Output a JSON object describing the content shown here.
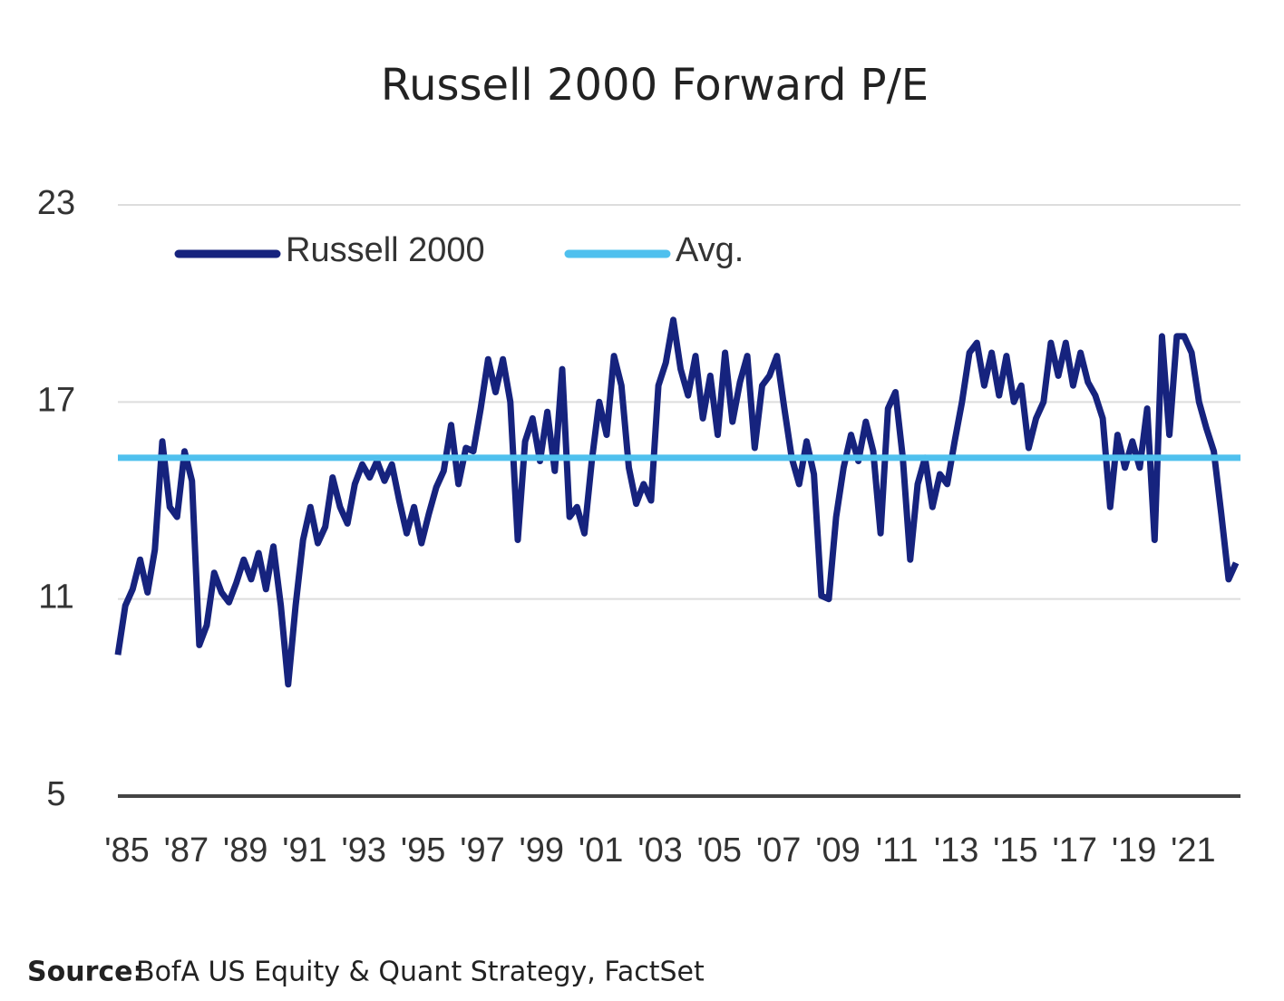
{
  "chart_data": {
    "type": "line",
    "title": "Russell 2000 Forward P/E",
    "source_label": "Source:",
    "source": "BofA US Equity & Quant Strategy, FactSet",
    "x": [
      1985,
      1985.25,
      1985.5,
      1985.75,
      1986,
      1986.25,
      1986.5,
      1986.75,
      1987,
      1987.25,
      1987.5,
      1987.75,
      1988,
      1988.25,
      1988.5,
      1988.75,
      1989,
      1989.25,
      1989.5,
      1989.75,
      1990,
      1990.25,
      1990.5,
      1990.75,
      1991,
      1991.25,
      1991.5,
      1991.75,
      1992,
      1992.25,
      1992.5,
      1992.75,
      1993,
      1993.25,
      1993.5,
      1993.75,
      1994,
      1994.25,
      1994.5,
      1994.75,
      1995,
      1995.25,
      1995.5,
      1995.75,
      1996,
      1996.25,
      1996.5,
      1996.75,
      1997,
      1997.25,
      1997.5,
      1997.75,
      1998,
      1998.25,
      1998.5,
      1998.75,
      1999,
      1999.25,
      1999.5,
      1999.75,
      2000,
      2000.25,
      2000.5,
      2000.75,
      2001,
      2001.25,
      2001.5,
      2001.75,
      2002,
      2002.25,
      2002.5,
      2002.75,
      2003,
      2003.25,
      2003.5,
      2003.75,
      2004,
      2004.25,
      2004.5,
      2004.75,
      2005,
      2005.25,
      2005.5,
      2005.75,
      2006,
      2006.25,
      2006.5,
      2006.75,
      2007,
      2007.25,
      2007.5,
      2007.75,
      2008,
      2008.25,
      2008.5,
      2008.75,
      2009,
      2009.25,
      2009.5,
      2009.75,
      2010,
      2010.25,
      2010.5,
      2010.75,
      2011,
      2011.25,
      2011.5,
      2011.75,
      2012,
      2012.25,
      2012.5,
      2012.75,
      2013,
      2013.25,
      2013.5,
      2013.75,
      2014,
      2014.25,
      2014.5,
      2014.75,
      2015,
      2015.25,
      2015.5,
      2015.75,
      2016,
      2016.25,
      2016.5,
      2016.75,
      2017,
      2017.25,
      2017.5,
      2017.75,
      2018,
      2018.25,
      2018.5,
      2018.75,
      2019,
      2019.25,
      2019.5,
      2019.75,
      2020,
      2020.25,
      2020.5,
      2020.75,
      2021,
      2021.25,
      2021.5,
      2021.75,
      2022,
      2022.25,
      2022.5,
      2022.75
    ],
    "series": [
      {
        "name": "Russell 2000",
        "color": "#16237e",
        "values": [
          9.3,
          10.8,
          11.3,
          12.2,
          11.2,
          12.5,
          15.8,
          13.8,
          13.5,
          15.5,
          14.6,
          9.6,
          10.2,
          11.8,
          11.2,
          10.9,
          11.5,
          12.2,
          11.6,
          12.4,
          11.3,
          12.6,
          10.8,
          8.4,
          10.8,
          12.8,
          13.8,
          12.7,
          13.2,
          14.7,
          13.8,
          13.3,
          14.5,
          15.1,
          14.7,
          15.2,
          14.6,
          15.1,
          14.0,
          13.0,
          13.8,
          12.7,
          13.6,
          14.4,
          14.9,
          16.3,
          14.5,
          15.6,
          15.5,
          16.8,
          18.3,
          17.3,
          18.3,
          17.0,
          12.8,
          15.8,
          16.5,
          15.2,
          16.7,
          14.9,
          18.0,
          13.5,
          13.8,
          13.0,
          15.2,
          17.0,
          16.0,
          18.4,
          17.5,
          15.0,
          13.9,
          14.5,
          14.0,
          17.5,
          18.2,
          19.5,
          18.0,
          17.2,
          18.4,
          16.5,
          17.8,
          16.0,
          18.5,
          16.4,
          17.6,
          18.4,
          15.6,
          17.5,
          17.8,
          18.4,
          16.8,
          15.3,
          14.5,
          15.8,
          14.8,
          11.1,
          11.0,
          13.5,
          15.0,
          16.0,
          15.2,
          16.4,
          15.5,
          13.0,
          16.8,
          17.3,
          15.3,
          12.2,
          14.5,
          15.3,
          13.8,
          14.8,
          14.5,
          15.8,
          17.0,
          18.5,
          18.8,
          17.5,
          18.5,
          17.2,
          18.4,
          17.0,
          17.5,
          15.6,
          16.5,
          17.0,
          18.8,
          17.8,
          18.8,
          17.5,
          18.5,
          17.6,
          17.2,
          16.5,
          13.8,
          16.0,
          15.0,
          15.8,
          15.0,
          16.8,
          12.8,
          19.0,
          16.0,
          19.0,
          19.0,
          18.5,
          17.0,
          16.2,
          15.5,
          13.6,
          11.6,
          12.1
        ]
      }
    ],
    "average": {
      "name": "Avg.",
      "value": 15.3,
      "color": "#4fc0ee"
    },
    "xlim": [
      1985,
      2022.9
    ],
    "xticks": [
      {
        "value": 1985,
        "label": "'85"
      },
      {
        "value": 1987,
        "label": "'87"
      },
      {
        "value": 1989,
        "label": "'89"
      },
      {
        "value": 1991,
        "label": "'91"
      },
      {
        "value": 1993,
        "label": "'93"
      },
      {
        "value": 1995,
        "label": "'95"
      },
      {
        "value": 1997,
        "label": "'97"
      },
      {
        "value": 1999,
        "label": "'99"
      },
      {
        "value": 2001,
        "label": "'01"
      },
      {
        "value": 2003,
        "label": "'03"
      },
      {
        "value": 2005,
        "label": "'05"
      },
      {
        "value": 2007,
        "label": "'07"
      },
      {
        "value": 2009,
        "label": "'09"
      },
      {
        "value": 2011,
        "label": "'11"
      },
      {
        "value": 2013,
        "label": "'13"
      },
      {
        "value": 2015,
        "label": "'15"
      },
      {
        "value": 2017,
        "label": "'17"
      },
      {
        "value": 2019,
        "label": "'19"
      },
      {
        "value": 2021,
        "label": "'21"
      }
    ],
    "ylim": [
      5,
      23
    ],
    "yticks": [
      5,
      11,
      17,
      23
    ],
    "grid": true
  }
}
